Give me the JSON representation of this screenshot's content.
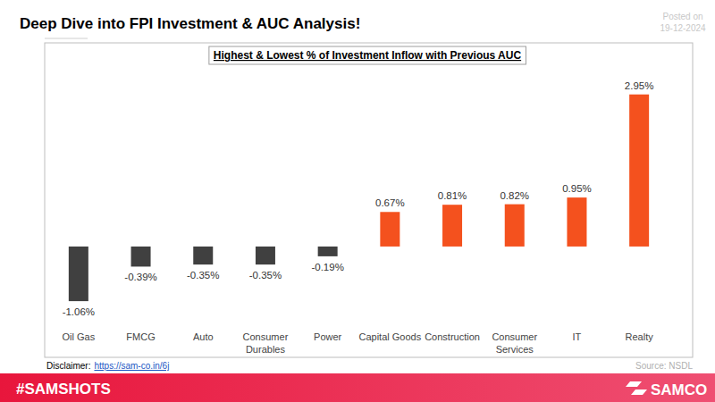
{
  "header": {
    "title": "Deep Dive into FPI Investment & AUC Analysis!",
    "posted_label": "Posted on",
    "posted_date": "19-12-2024"
  },
  "chart_data": {
    "type": "bar",
    "title": "Highest & Lowest % of Investment Inflow with Previous AUC",
    "categories": [
      "Oil Gas",
      "FMCG",
      "Auto",
      "Consumer Durables",
      "Power",
      "Capital Goods",
      "Construction",
      "Consumer Services",
      "IT",
      "Realty"
    ],
    "values": [
      -1.06,
      -0.39,
      -0.35,
      -0.35,
      -0.19,
      0.67,
      0.81,
      0.82,
      0.95,
      2.95
    ],
    "value_labels": [
      "-1.06%",
      "-0.39%",
      "-0.35%",
      "-0.35%",
      "-0.19%",
      "0.67%",
      "0.81%",
      "0.82%",
      "0.95%",
      "2.95%"
    ],
    "colors": [
      "#404040",
      "#404040",
      "#404040",
      "#404040",
      "#404040",
      "#f4511e",
      "#f4511e",
      "#f4511e",
      "#f4511e",
      "#f4511e"
    ],
    "ylim": [
      -2.15,
      3.95
    ],
    "data_labels": true,
    "tick_labels": false,
    "grid": false
  },
  "footer": {
    "disclaimer_label": "Disclaimer:",
    "disclaimer_link": "https://sam-co.in/6j",
    "source": "Source: NSDL",
    "hashtag": "#SAMSHOTS",
    "brand": "SAMCO"
  }
}
